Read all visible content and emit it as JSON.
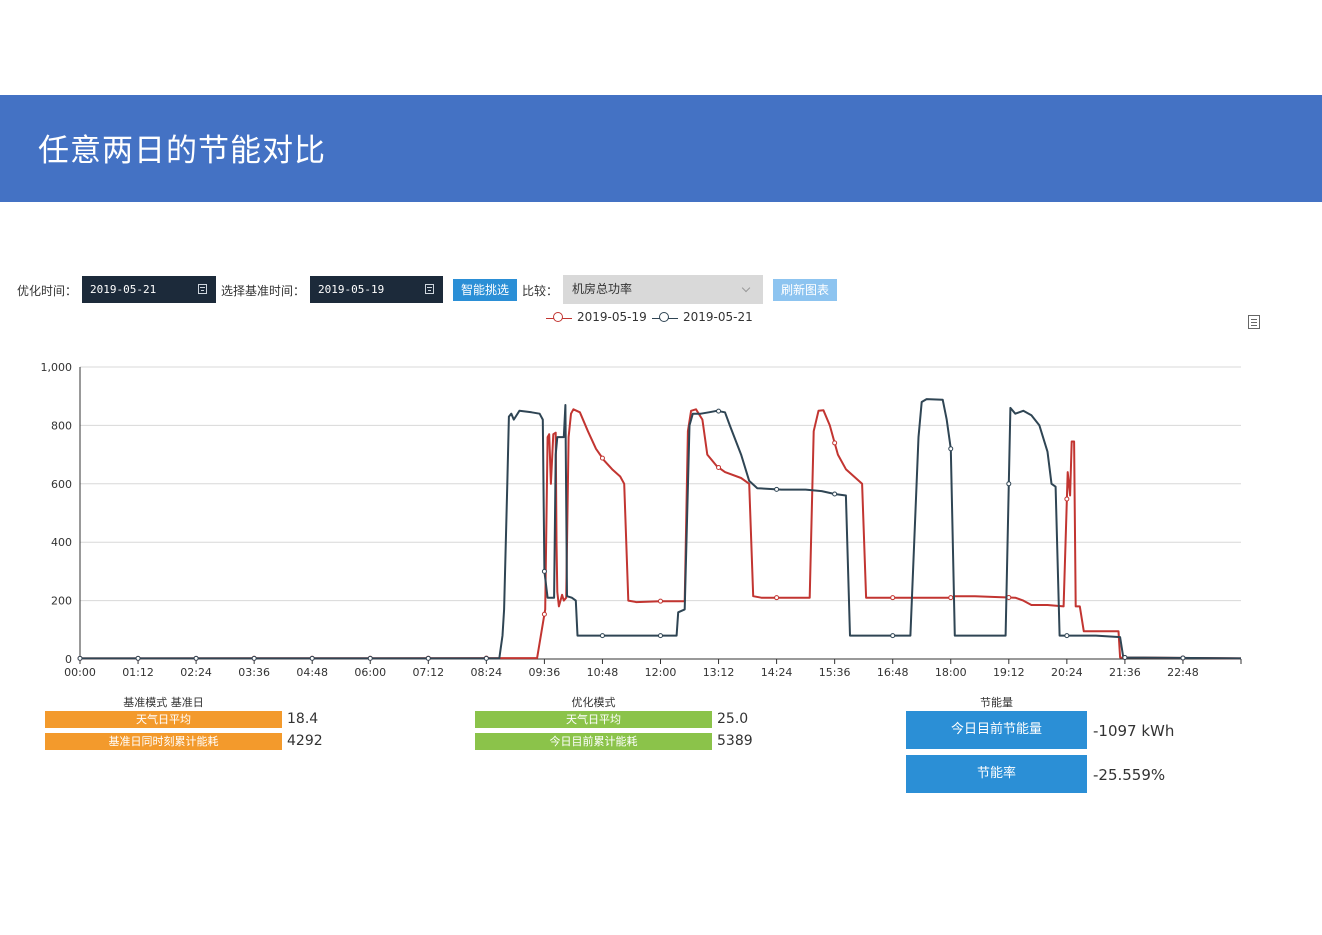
{
  "header": {
    "title": "任意两日的节能对比"
  },
  "controls": {
    "optimize_label": "优化时间：",
    "optimize_date": "2019-05-21",
    "baseline_label": "选择基准时间：",
    "baseline_date": "2019-05-19",
    "smart_pick_label": "智能挑选",
    "compare_label": "比较：",
    "compare_selected": "机房总功率",
    "refresh_label": "刷新图表",
    "colors": {
      "smart_pick": "#2b8fd6",
      "refresh": "#8dc4f0",
      "date_bg": "#1c2a3a"
    }
  },
  "chart_data": {
    "type": "line",
    "x_ticks": [
      "00:00",
      "01:12",
      "02:24",
      "03:36",
      "04:48",
      "06:00",
      "07:12",
      "08:24",
      "09:36",
      "10:48",
      "12:00",
      "13:12",
      "14:24",
      "15:36",
      "16:48",
      "18:00",
      "19:12",
      "20:24",
      "21:36",
      "22:48"
    ],
    "y_ticks": [
      "0",
      "200",
      "400",
      "600",
      "800",
      "1,000"
    ],
    "ylim": [
      0,
      1000
    ],
    "xlim_minutes": [
      0,
      1440
    ],
    "legend_position": "top-center",
    "grid": true,
    "series": [
      {
        "name": "2019-05-19",
        "color": "#c23531",
        "points": [
          [
            "00:00",
            2
          ],
          [
            "09:27",
            3
          ],
          [
            "09:37",
            170
          ],
          [
            "09:40",
            760
          ],
          [
            "09:42",
            770
          ],
          [
            "09:44",
            600
          ],
          [
            "09:47",
            770
          ],
          [
            "09:50",
            775
          ],
          [
            "09:51",
            400
          ],
          [
            "09:52",
            230
          ],
          [
            "09:54",
            180
          ],
          [
            "09:56",
            200
          ],
          [
            "09:58",
            220
          ],
          [
            "10:00",
            200
          ],
          [
            "10:03",
            210
          ],
          [
            "10:06",
            760
          ],
          [
            "10:09",
            840
          ],
          [
            "10:12",
            855
          ],
          [
            "10:20",
            845
          ],
          [
            "10:30",
            780
          ],
          [
            "10:40",
            720
          ],
          [
            "10:50",
            680
          ],
          [
            "11:00",
            650
          ],
          [
            "11:10",
            625
          ],
          [
            "11:15",
            600
          ],
          [
            "11:20",
            200
          ],
          [
            "11:30",
            195
          ],
          [
            "12:00",
            198
          ],
          [
            "12:30",
            198
          ],
          [
            "12:34",
            780
          ],
          [
            "12:38",
            850
          ],
          [
            "12:44",
            855
          ],
          [
            "12:52",
            820
          ],
          [
            "12:58",
            700
          ],
          [
            "13:10",
            660
          ],
          [
            "13:20",
            640
          ],
          [
            "13:40",
            620
          ],
          [
            "13:50",
            600
          ],
          [
            "13:55",
            215
          ],
          [
            "14:05",
            210
          ],
          [
            "15:05",
            210
          ],
          [
            "15:10",
            780
          ],
          [
            "15:16",
            850
          ],
          [
            "15:22",
            852
          ],
          [
            "15:30",
            800
          ],
          [
            "15:40",
            700
          ],
          [
            "15:50",
            650
          ],
          [
            "16:00",
            625
          ],
          [
            "16:10",
            600
          ],
          [
            "16:15",
            210
          ],
          [
            "16:45",
            210
          ],
          [
            "17:30",
            210
          ],
          [
            "18:00",
            210
          ],
          [
            "18:05",
            215
          ],
          [
            "18:30",
            215
          ],
          [
            "19:20",
            210
          ],
          [
            "19:30",
            200
          ],
          [
            "19:40",
            185
          ],
          [
            "20:00",
            185
          ],
          [
            "20:20",
            180
          ],
          [
            "20:25",
            640
          ],
          [
            "20:28",
            560
          ],
          [
            "20:30",
            745
          ],
          [
            "20:33",
            745
          ],
          [
            "20:35",
            180
          ],
          [
            "20:40",
            180
          ],
          [
            "20:45",
            95
          ],
          [
            "21:00",
            95
          ],
          [
            "21:28",
            95
          ],
          [
            "21:30",
            5
          ],
          [
            "24:00",
            2
          ]
        ]
      },
      {
        "name": "2019-05-21",
        "color": "#2f4554",
        "points": [
          [
            "00:00",
            2
          ],
          [
            "08:40",
            2
          ],
          [
            "08:44",
            80
          ],
          [
            "08:46",
            170
          ],
          [
            "08:50",
            600
          ],
          [
            "08:52",
            830
          ],
          [
            "08:55",
            840
          ],
          [
            "08:58",
            820
          ],
          [
            "09:05",
            850
          ],
          [
            "09:20",
            845
          ],
          [
            "09:30",
            840
          ],
          [
            "09:34",
            820
          ],
          [
            "09:36",
            300
          ],
          [
            "09:40",
            210
          ],
          [
            "09:48",
            210
          ],
          [
            "09:50",
            700
          ],
          [
            "09:52",
            760
          ],
          [
            "10:00",
            760
          ],
          [
            "10:02",
            870
          ],
          [
            "10:04",
            215
          ],
          [
            "10:10",
            210
          ],
          [
            "10:15",
            200
          ],
          [
            "10:17",
            80
          ],
          [
            "11:00",
            80
          ],
          [
            "12:00",
            80
          ],
          [
            "12:20",
            80
          ],
          [
            "12:22",
            160
          ],
          [
            "12:30",
            170
          ],
          [
            "12:36",
            800
          ],
          [
            "12:40",
            840
          ],
          [
            "12:50",
            840
          ],
          [
            "13:00",
            845
          ],
          [
            "13:10",
            850
          ],
          [
            "13:20",
            845
          ],
          [
            "13:26",
            800
          ],
          [
            "13:40",
            700
          ],
          [
            "13:50",
            610
          ],
          [
            "14:00",
            585
          ],
          [
            "14:30",
            580
          ],
          [
            "15:00",
            580
          ],
          [
            "15:20",
            575
          ],
          [
            "15:36",
            565
          ],
          [
            "15:50",
            560
          ],
          [
            "15:55",
            80
          ],
          [
            "16:30",
            80
          ],
          [
            "17:00",
            80
          ],
          [
            "17:10",
            80
          ],
          [
            "17:20",
            760
          ],
          [
            "17:24",
            880
          ],
          [
            "17:30",
            890
          ],
          [
            "17:50",
            888
          ],
          [
            "17:55",
            820
          ],
          [
            "18:00",
            720
          ],
          [
            "18:05",
            80
          ],
          [
            "19:00",
            80
          ],
          [
            "19:08",
            80
          ],
          [
            "19:14",
            860
          ],
          [
            "19:20",
            840
          ],
          [
            "19:30",
            850
          ],
          [
            "19:40",
            835
          ],
          [
            "19:50",
            800
          ],
          [
            "20:00",
            710
          ],
          [
            "20:05",
            600
          ],
          [
            "20:10",
            590
          ],
          [
            "20:15",
            80
          ],
          [
            "20:30",
            80
          ],
          [
            "21:00",
            80
          ],
          [
            "21:30",
            75
          ],
          [
            "21:34",
            5
          ],
          [
            "24:00",
            2
          ]
        ]
      }
    ]
  },
  "baseline_panel": {
    "title": "基准模式 基准日",
    "weather_label": "天气日平均",
    "weather_value": "18.4",
    "cumulative_label": "基准日同时刻累计能耗",
    "cumulative_value": "4292",
    "color": "#f39a2c"
  },
  "optimized_panel": {
    "title": "优化模式",
    "weather_label": "天气日平均",
    "weather_value": "25.0",
    "cumulative_label": "今日目前累计能耗",
    "cumulative_value": "5389",
    "color": "#8bc34a"
  },
  "savings_panel": {
    "title": "节能量",
    "saving_label": "今日目前节能量",
    "saving_value": "-1097 kWh",
    "rate_label": "节能率",
    "rate_value": "-25.559%",
    "color": "#2b8fd6"
  }
}
